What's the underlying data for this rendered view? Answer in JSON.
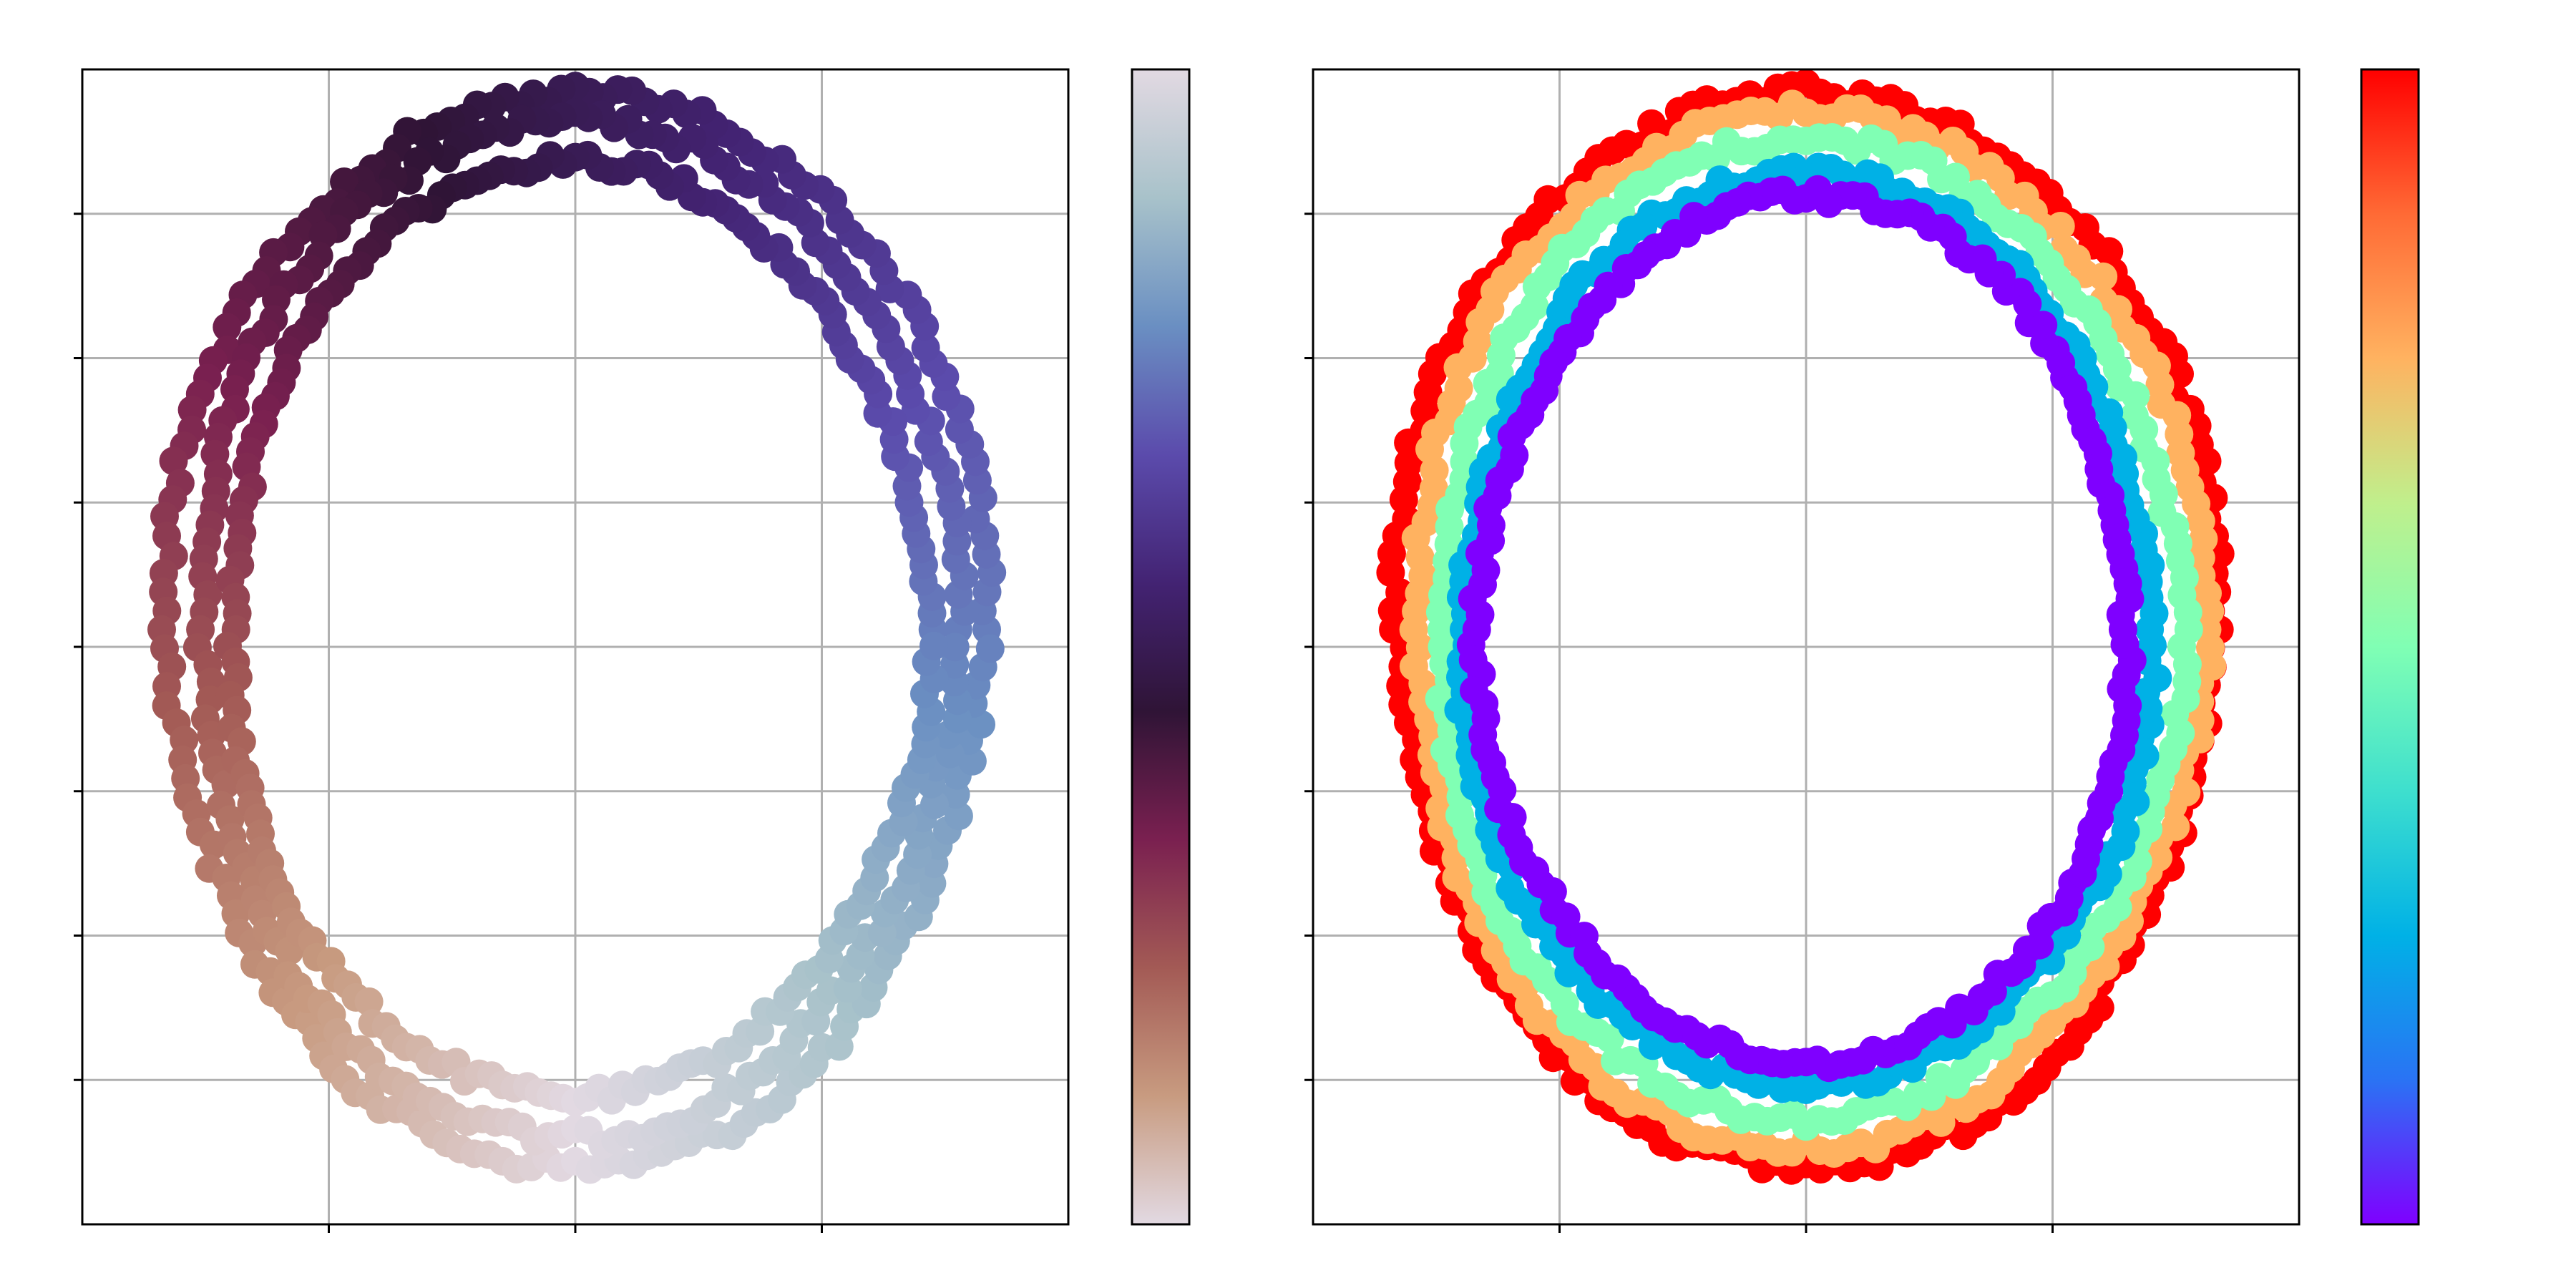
{
  "chart_data": [
    {
      "type": "scatter",
      "title": "",
      "xlabel": "",
      "ylabel": "",
      "xlim": [
        -1.0,
        1.0
      ],
      "ylim": [
        -1.0,
        1.0
      ],
      "xticks": [
        -0.5,
        0.0,
        0.5
      ],
      "yticks": [
        -0.75,
        -0.5,
        -0.25,
        0.0,
        0.25,
        0.5,
        0.75
      ],
      "tick_labels_shown": false,
      "grid": true,
      "colormap": "twilight",
      "color_by": "angle",
      "colormap_stops": [
        "#e2d9e2",
        "#c89b80",
        "#a35a55",
        "#7a2050",
        "#2f1436",
        "#432373",
        "#5b4bac",
        "#6a8fc2",
        "#a8c2ca",
        "#e2d9e2"
      ],
      "colorbar": true,
      "series": [
        {
          "center": [
            0.0,
            0.03
          ],
          "radius_x": 0.83,
          "radius_y": 0.93
        },
        {
          "center": [
            0.0,
            0.03
          ],
          "radius_x": 0.77,
          "radius_y": 0.88
        },
        {
          "center": [
            0.0,
            0.03
          ],
          "radius_x": 0.71,
          "radius_y": 0.81
        }
      ]
    },
    {
      "type": "scatter",
      "title": "",
      "xlabel": "",
      "ylabel": "",
      "xlim": [
        -1.0,
        1.0
      ],
      "ylim": [
        -1.0,
        1.0
      ],
      "xticks": [
        -0.5,
        0.0,
        0.5
      ],
      "yticks": [
        -0.75,
        -0.5,
        -0.25,
        0.0,
        0.25,
        0.5,
        0.75
      ],
      "tick_labels_shown": false,
      "grid": true,
      "colormap": "rainbow",
      "color_by": "ring",
      "colormap_stops": [
        "#7f00ff",
        "#2a73f4",
        "#00b1e6",
        "#3edfce",
        "#80ffb4",
        "#c0ef8c",
        "#ffb260",
        "#ff6a35",
        "#ff0000"
      ],
      "colorbar": true,
      "series": [
        {
          "center": [
            0.0,
            0.03
          ],
          "radius_x": 0.83,
          "radius_y": 0.93,
          "color": "#ff0000"
        },
        {
          "center": [
            0.0,
            0.03
          ],
          "radius_x": 0.8,
          "radius_y": 0.9,
          "color": "#ffb260"
        },
        {
          "center": [
            0.0,
            0.03
          ],
          "radius_x": 0.75,
          "radius_y": 0.85,
          "color": "#80ffb4"
        },
        {
          "center": [
            0.0,
            0.03
          ],
          "radius_x": 0.7,
          "radius_y": 0.79,
          "color": "#00b1e6"
        },
        {
          "center": [
            0.0,
            0.03
          ],
          "radius_x": 0.66,
          "radius_y": 0.75,
          "color": "#7f00ff"
        }
      ]
    }
  ]
}
